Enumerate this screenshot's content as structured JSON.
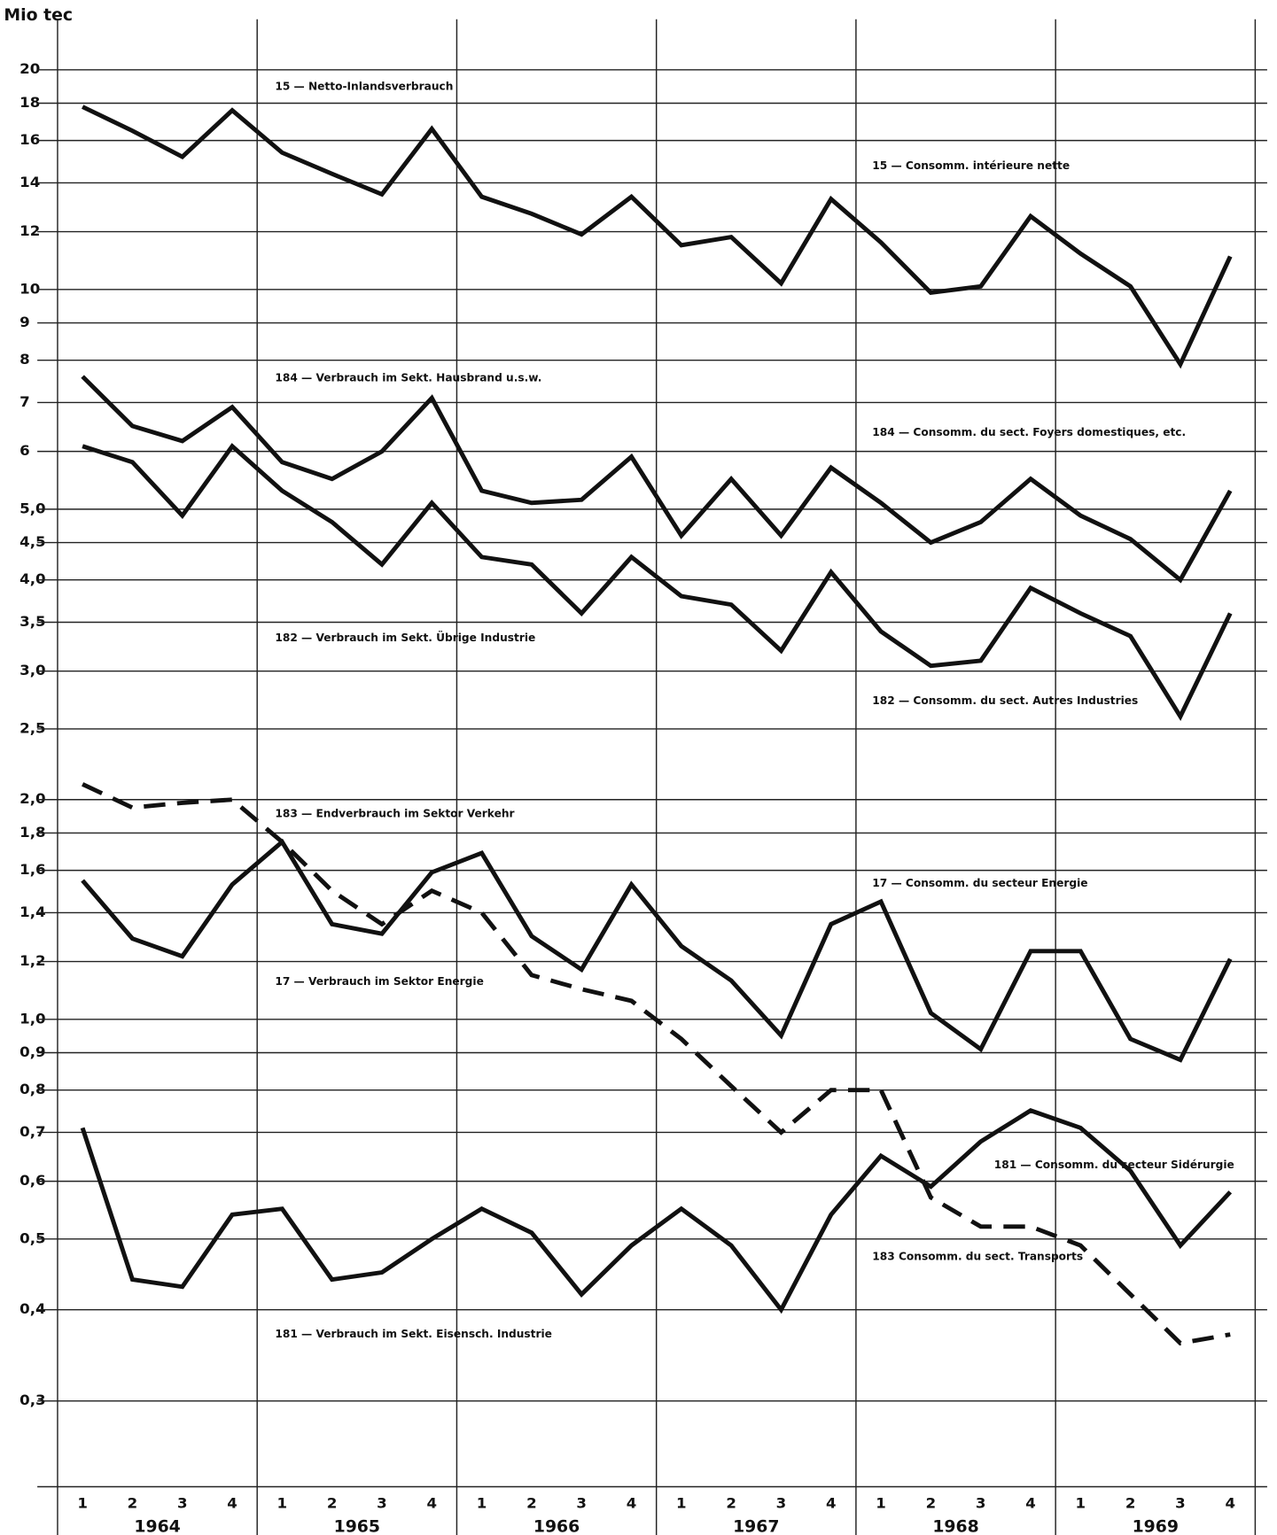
{
  "chart_data": {
    "type": "line",
    "y_label": "Mio tec",
    "log_y": true,
    "grid": true,
    "categories": [
      "1",
      "2",
      "3",
      "4",
      "1",
      "2",
      "3",
      "4",
      "1",
      "2",
      "3",
      "4",
      "1",
      "2",
      "3",
      "4",
      "1",
      "2",
      "3",
      "4",
      "1",
      "2",
      "3",
      "4"
    ],
    "years": [
      "1964",
      "1965",
      "1966",
      "1967",
      "1968",
      "1969"
    ],
    "ylim": [
      0.25,
      22
    ],
    "yticks": [
      20,
      18,
      16,
      14,
      12,
      10,
      9,
      8,
      7,
      6,
      {
        "value": 5,
        "label": "5,0"
      },
      {
        "value": 4.5,
        "label": "4,5"
      },
      {
        "value": 4,
        "label": "4,0"
      },
      {
        "value": 3.5,
        "label": "3,5"
      },
      {
        "value": 3,
        "label": "3,0"
      },
      {
        "value": 2.5,
        "label": "2,5"
      },
      {
        "value": 2,
        "label": "2,0"
      },
      {
        "value": 1.8,
        "label": "1,8"
      },
      {
        "value": 1.6,
        "label": "1,6"
      },
      {
        "value": 1.4,
        "label": "1,4"
      },
      {
        "value": 1.2,
        "label": "1,2"
      },
      {
        "value": 1,
        "label": "1,0"
      },
      {
        "value": 0.9,
        "label": "0,9"
      },
      {
        "value": 0.8,
        "label": "0,8"
      },
      {
        "value": 0.7,
        "label": "0,7"
      },
      {
        "value": 0.6,
        "label": "0,6"
      },
      {
        "value": 0.5,
        "label": "0,5"
      },
      {
        "value": 0.4,
        "label": "0,4"
      },
      {
        "value": 0.3,
        "label": "0,3"
      }
    ],
    "series": [
      {
        "name": "15 — Netto-Inlandsverbrauch",
        "name_fr": "15 — Consomm. intérieure nette",
        "color": "#111111",
        "dash": false,
        "values": [
          17.8,
          16.5,
          15.2,
          17.6,
          15.4,
          14.4,
          13.5,
          16.6,
          13.4,
          12.7,
          11.9,
          13.4,
          11.5,
          11.8,
          10.2,
          13.3,
          11.6,
          9.9,
          10.1,
          12.6,
          11.2,
          10.1,
          7.9,
          11.1
        ]
      },
      {
        "name": "184 — Verbrauch im Sekt. Hausbrand u.s.w.",
        "name_fr": "184 — Consomm. du sect. Foyers domestiques, etc.",
        "color": "#111111",
        "dash": false,
        "values": [
          7.6,
          6.5,
          6.2,
          6.9,
          5.8,
          5.5,
          6.0,
          7.1,
          5.3,
          5.1,
          5.15,
          5.9,
          4.6,
          5.5,
          4.6,
          5.7,
          5.1,
          4.5,
          4.8,
          5.5,
          4.9,
          4.55,
          4.0,
          5.3
        ]
      },
      {
        "name": "182 — Verbrauch im Sekt. Übrige Industrie",
        "name_fr": "182 — Consomm. du sect. Autres Industries",
        "color": "#111111",
        "dash": false,
        "values": [
          6.1,
          5.8,
          4.9,
          6.1,
          5.3,
          4.8,
          4.2,
          5.1,
          4.3,
          4.2,
          3.6,
          4.3,
          3.8,
          3.7,
          3.2,
          4.1,
          3.4,
          3.05,
          3.1,
          3.9,
          3.6,
          3.35,
          2.6,
          3.6
        ]
      },
      {
        "name": "183 — Endverbrauch im Sektor Verkehr",
        "name_fr": "183    Consomm. du sect. Transports",
        "color": "#111111",
        "dash": true,
        "values": [
          2.1,
          1.95,
          1.98,
          2.0,
          1.75,
          1.5,
          1.35,
          1.5,
          1.4,
          1.15,
          1.1,
          1.06,
          0.94,
          0.81,
          0.7,
          0.8,
          0.8,
          0.57,
          0.52,
          0.52,
          0.49,
          0.42,
          0.36,
          0.37
        ]
      },
      {
        "name": "17 — Verbrauch im Sektor Energie",
        "name_fr": "17 — Consomm. du secteur Energie",
        "color": "#111111",
        "dash": false,
        "values": [
          1.55,
          1.29,
          1.22,
          1.53,
          1.75,
          1.35,
          1.31,
          1.59,
          1.69,
          1.3,
          1.17,
          1.53,
          1.26,
          1.13,
          0.95,
          1.35,
          1.45,
          1.02,
          0.91,
          1.24,
          1.24,
          0.94,
          0.88,
          1.21
        ]
      },
      {
        "name": "181 — Verbrauch im Sekt. Eisensch. Industrie",
        "name_fr": "181 — Consomm. du secteur Sidérurgie",
        "color": "#111111",
        "dash": false,
        "values": [
          0.71,
          0.44,
          0.43,
          0.54,
          0.55,
          0.44,
          0.45,
          0.5,
          0.55,
          0.51,
          0.42,
          0.49,
          0.55,
          0.49,
          0.4,
          0.54,
          0.65,
          0.59,
          0.68,
          0.75,
          0.71,
          0.62,
          0.49,
          0.58
        ]
      }
    ]
  }
}
